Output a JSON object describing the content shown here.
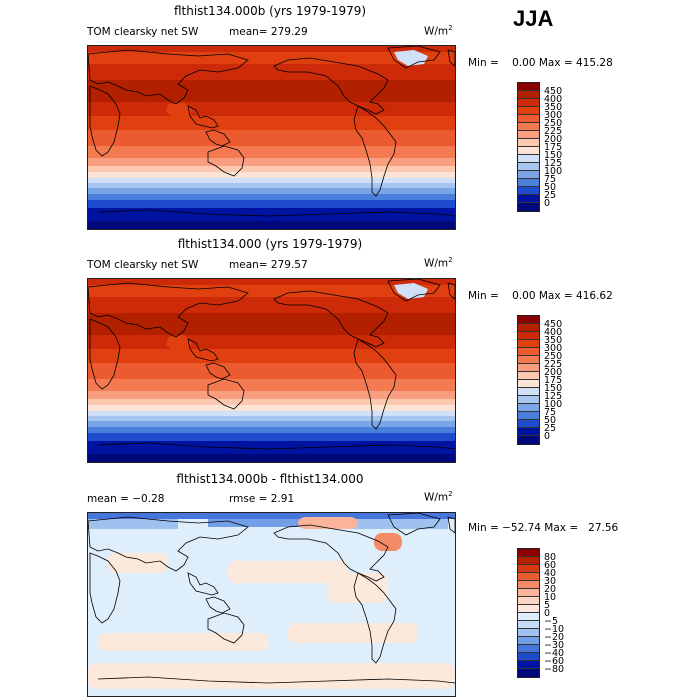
{
  "season": "JJA",
  "panels": [
    {
      "title": "flthist134.000b (yrs 1979-1979)",
      "left_label": "TOM clearsky net SW",
      "stat_label": "mean= 279.29",
      "units": "W/m",
      "units_exp": "2",
      "minmax": "Min =    0.00 Max = 415.28",
      "colorbar_labels": [
        "450",
        "400",
        "350",
        "300",
        "250",
        "225",
        "200",
        "175",
        "150",
        "125",
        "100",
        "75",
        "50",
        "25",
        "0"
      ]
    },
    {
      "title": "flthist134.000 (yrs 1979-1979)",
      "left_label": "TOM clearsky net SW",
      "stat_label": "mean= 279.57",
      "units": "W/m",
      "units_exp": "2",
      "minmax": "Min =    0.00 Max = 416.62",
      "colorbar_labels": [
        "450",
        "400",
        "350",
        "300",
        "250",
        "225",
        "200",
        "175",
        "150",
        "125",
        "100",
        "75",
        "50",
        "25",
        "0"
      ]
    },
    {
      "title": "flthist134.000b - flthist134.000",
      "left_label": "mean =   −0.28",
      "stat_label": "rmse =    2.91",
      "units": "W/m",
      "units_exp": "2",
      "minmax": "Min = −52.74 Max =   27.56",
      "colorbar_labels": [
        "80",
        "60",
        "40",
        "30",
        "20",
        "10",
        "5",
        "0",
        "−5",
        "−10",
        "−20",
        "−30",
        "−40",
        "−60",
        "−80"
      ]
    }
  ],
  "colors": {
    "sw_scale": [
      "#8b0000",
      "#b22000",
      "#cc2a08",
      "#e0400f",
      "#ec5a30",
      "#f47a52",
      "#f99e80",
      "#fcc8b0",
      "#fbe4d6",
      "#cfe0f7",
      "#a6c6f0",
      "#7aa6e8",
      "#4a7fdc",
      "#1f4ccf",
      "#0012a0",
      "#00087a"
    ],
    "diff_scale": [
      "#8b0000",
      "#b22000",
      "#d63a12",
      "#ea5c32",
      "#f58a66",
      "#f9b49a",
      "#fcd6c4",
      "#fde8dc",
      "#dfeefb",
      "#c4dcf6",
      "#9ec1f0",
      "#729fe6",
      "#4676d9",
      "#1e4bc9",
      "#0014a5",
      "#00087a"
    ],
    "continent_outline": "#000000"
  }
}
